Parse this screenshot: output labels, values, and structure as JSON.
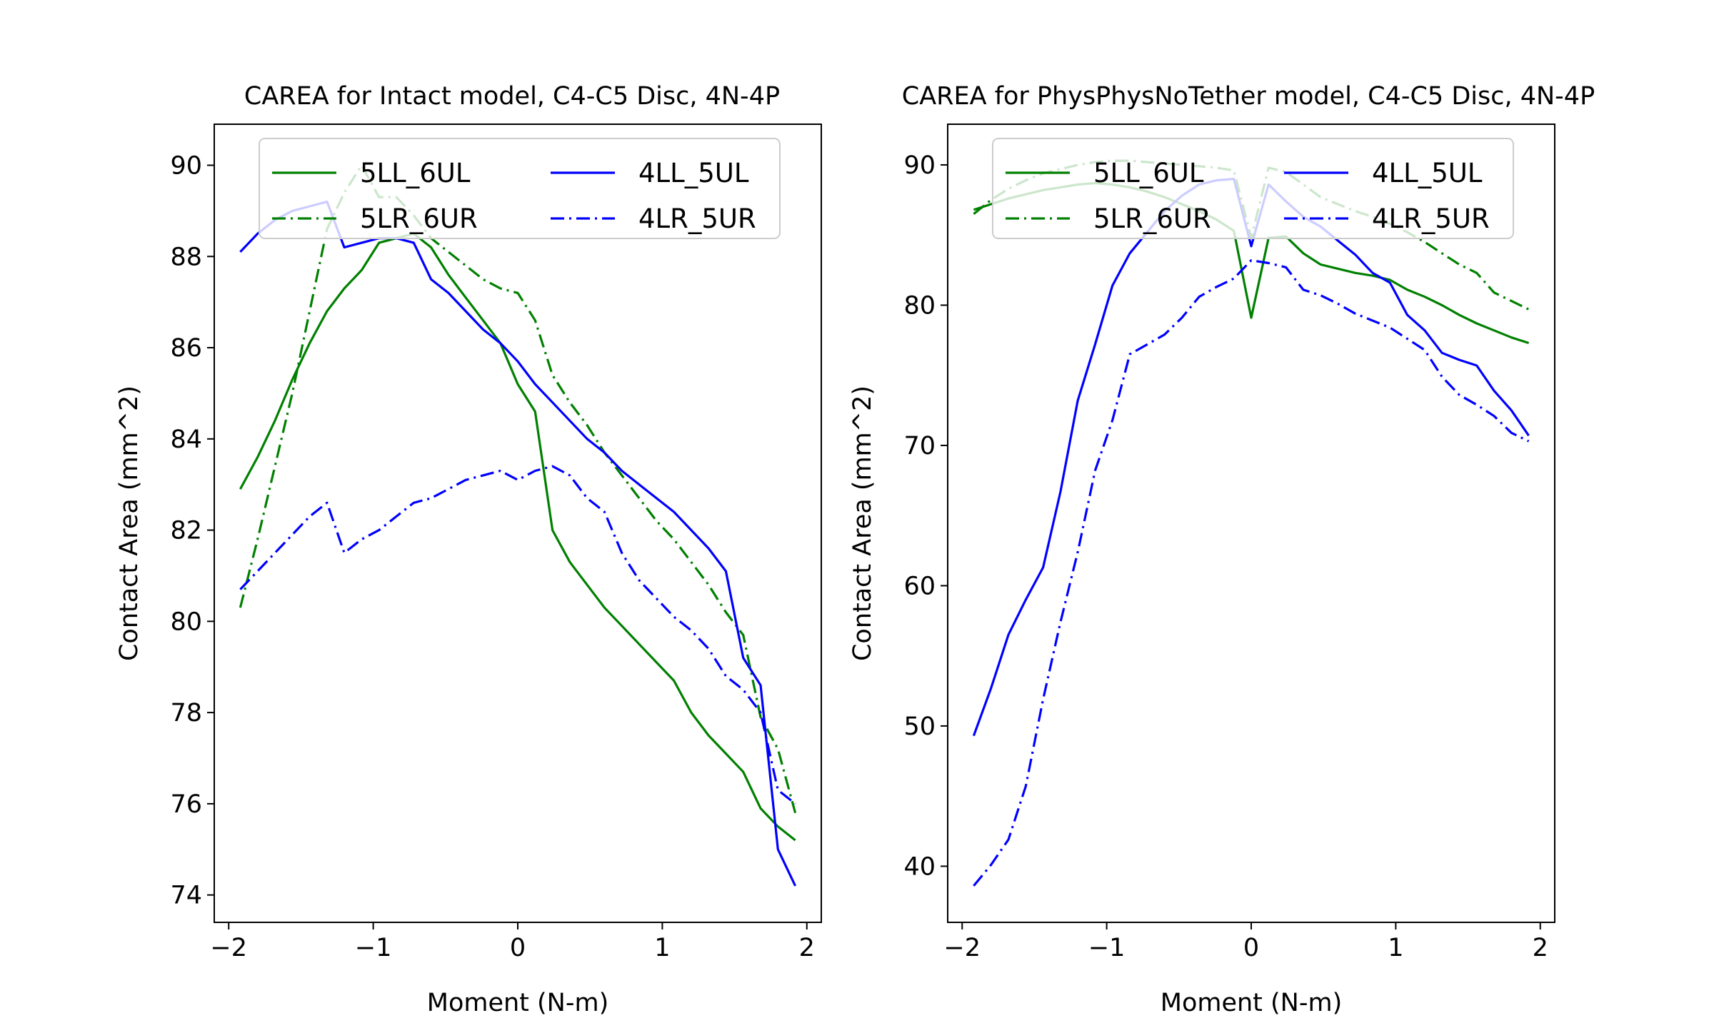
{
  "chart_data": [
    {
      "type": "line",
      "title": "CAREA for Intact model, C4-C5 Disc, 4N-4P",
      "xlabel": "Moment (N-m)",
      "ylabel": "Contact Area (mm^2)",
      "xlim": [
        -2.1,
        2.1
      ],
      "ylim": [
        73.4,
        90.9
      ],
      "xticks": [
        -2,
        -1,
        0,
        1,
        2
      ],
      "xtick_labels": [
        "−2",
        "−1",
        "0",
        "1",
        "2"
      ],
      "yticks": [
        74,
        76,
        78,
        80,
        82,
        84,
        86,
        88,
        90
      ],
      "ytick_labels": [
        "74",
        "76",
        "78",
        "80",
        "82",
        "84",
        "86",
        "88",
        "90"
      ],
      "legend_placement": "top-center",
      "series": [
        {
          "name": "5LL_6UL",
          "color": "#008000",
          "dash": "solid",
          "x": [
            -1.92,
            -1.8,
            -1.68,
            -1.56,
            -1.44,
            -1.32,
            -1.2,
            -1.08,
            -0.96,
            -0.84,
            -0.72,
            -0.6,
            -0.48,
            -0.36,
            -0.24,
            -0.12,
            0.0,
            0.12,
            0.24,
            0.36,
            0.48,
            0.6,
            0.72,
            0.84,
            0.96,
            1.08,
            1.2,
            1.32,
            1.44,
            1.56,
            1.68,
            1.8,
            1.92
          ],
          "y": [
            82.9,
            83.6,
            84.4,
            85.3,
            86.1,
            86.8,
            87.3,
            87.7,
            88.3,
            88.4,
            88.5,
            88.2,
            87.6,
            87.1,
            86.6,
            86.1,
            85.2,
            84.6,
            82.0,
            81.3,
            80.8,
            80.3,
            79.9,
            79.5,
            79.1,
            78.7,
            78.0,
            77.5,
            77.1,
            76.7,
            75.9,
            75.5,
            75.2
          ]
        },
        {
          "name": "5LR_6UR",
          "color": "#008000",
          "dash": "dashdot",
          "x": [
            -1.92,
            -1.8,
            -1.68,
            -1.56,
            -1.44,
            -1.32,
            -1.2,
            -1.08,
            -0.96,
            -0.84,
            -0.72,
            -0.6,
            -0.48,
            -0.36,
            -0.24,
            -0.12,
            0.0,
            0.12,
            0.24,
            0.36,
            0.48,
            0.6,
            0.72,
            0.84,
            0.96,
            1.08,
            1.2,
            1.32,
            1.44,
            1.56,
            1.68,
            1.8,
            1.92
          ],
          "y": [
            80.3,
            81.8,
            83.4,
            85.0,
            86.8,
            88.6,
            89.4,
            90.0,
            89.3,
            89.3,
            88.9,
            88.4,
            88.1,
            87.8,
            87.5,
            87.3,
            87.2,
            86.6,
            85.4,
            84.8,
            84.3,
            83.7,
            83.2,
            82.7,
            82.2,
            81.8,
            81.3,
            80.8,
            80.2,
            79.7,
            77.9,
            77.2,
            75.8
          ]
        },
        {
          "name": "4LL_5UL",
          "color": "#0000ff",
          "dash": "solid",
          "x": [
            -1.92,
            -1.8,
            -1.68,
            -1.56,
            -1.44,
            -1.32,
            -1.2,
            -1.08,
            -0.96,
            -0.84,
            -0.72,
            -0.6,
            -0.48,
            -0.36,
            -0.24,
            -0.12,
            0.0,
            0.12,
            0.24,
            0.36,
            0.48,
            0.6,
            0.72,
            0.84,
            0.96,
            1.08,
            1.2,
            1.32,
            1.44,
            1.56,
            1.68,
            1.8,
            1.92
          ],
          "y": [
            88.1,
            88.5,
            88.8,
            89.0,
            89.1,
            89.2,
            88.2,
            88.3,
            88.4,
            88.4,
            88.3,
            87.5,
            87.2,
            86.8,
            86.4,
            86.1,
            85.7,
            85.2,
            84.8,
            84.4,
            84.0,
            83.7,
            83.3,
            83.0,
            82.7,
            82.4,
            82.0,
            81.6,
            81.1,
            79.2,
            78.6,
            75.0,
            74.2
          ]
        },
        {
          "name": "4LR_5UR",
          "color": "#0000ff",
          "dash": "dashdot",
          "x": [
            -1.92,
            -1.8,
            -1.68,
            -1.56,
            -1.44,
            -1.32,
            -1.2,
            -1.08,
            -0.96,
            -0.84,
            -0.72,
            -0.6,
            -0.48,
            -0.36,
            -0.24,
            -0.12,
            0.0,
            0.12,
            0.24,
            0.36,
            0.48,
            0.6,
            0.72,
            0.84,
            0.96,
            1.08,
            1.2,
            1.32,
            1.44,
            1.56,
            1.68,
            1.8,
            1.92
          ],
          "y": [
            80.7,
            81.1,
            81.5,
            81.9,
            82.3,
            82.6,
            81.5,
            81.8,
            82.0,
            82.3,
            82.6,
            82.7,
            82.9,
            83.1,
            83.2,
            83.3,
            83.1,
            83.3,
            83.4,
            83.2,
            82.7,
            82.4,
            81.5,
            80.9,
            80.5,
            80.1,
            79.8,
            79.4,
            78.8,
            78.5,
            78.0,
            76.3,
            76.0
          ]
        }
      ]
    },
    {
      "type": "line",
      "title": "CAREA for PhysPhysNoTether model, C4-C5 Disc, 4N-4P",
      "xlabel": "Moment (N-m)",
      "ylabel": "Contact Area (mm^2)",
      "xlim": [
        -2.1,
        2.1
      ],
      "ylim": [
        36.0,
        92.9
      ],
      "xticks": [
        -2,
        -1,
        0,
        1,
        2
      ],
      "xtick_labels": [
        "−2",
        "−1",
        "0",
        "1",
        "2"
      ],
      "yticks": [
        40,
        50,
        60,
        70,
        80,
        90
      ],
      "ytick_labels": [
        "40",
        "50",
        "60",
        "70",
        "80",
        "90"
      ],
      "legend_placement": "top-center",
      "series": [
        {
          "name": "5LL_6UL",
          "color": "#008000",
          "dash": "solid",
          "x": [
            -1.92,
            -1.8,
            -1.68,
            -1.56,
            -1.44,
            -1.32,
            -1.2,
            -1.08,
            -0.96,
            -0.84,
            -0.72,
            -0.6,
            -0.48,
            -0.36,
            -0.24,
            -0.12,
            0.0,
            0.12,
            0.24,
            0.36,
            0.48,
            0.6,
            0.72,
            0.84,
            0.96,
            1.08,
            1.2,
            1.32,
            1.44,
            1.56,
            1.68,
            1.8,
            1.92
          ],
          "y": [
            86.8,
            87.2,
            87.6,
            87.9,
            88.2,
            88.4,
            88.6,
            88.7,
            88.6,
            88.4,
            88.1,
            87.7,
            87.2,
            86.7,
            86.1,
            85.3,
            79.1,
            84.8,
            84.9,
            83.7,
            82.9,
            82.6,
            82.3,
            82.1,
            81.8,
            81.1,
            80.6,
            80.0,
            79.3,
            78.7,
            78.2,
            77.7,
            77.3
          ]
        },
        {
          "name": "5LR_6UR",
          "color": "#008000",
          "dash": "dashdot",
          "x": [
            -1.92,
            -1.8,
            -1.68,
            -1.56,
            -1.44,
            -1.32,
            -1.2,
            -1.08,
            -0.96,
            -0.84,
            -0.72,
            -0.6,
            -0.48,
            -0.36,
            -0.24,
            -0.12,
            0.0,
            0.12,
            0.24,
            0.36,
            0.48,
            0.6,
            0.72,
            0.84,
            0.96,
            1.08,
            1.2,
            1.32,
            1.44,
            1.56,
            1.68,
            1.8,
            1.92
          ],
          "y": [
            86.5,
            87.5,
            88.3,
            88.9,
            89.4,
            89.7,
            90.0,
            90.2,
            90.3,
            90.3,
            90.2,
            90.1,
            90.0,
            89.9,
            89.8,
            89.6,
            84.8,
            89.8,
            89.5,
            88.6,
            87.7,
            87.2,
            86.7,
            86.3,
            85.8,
            85.2,
            84.5,
            83.7,
            82.9,
            82.3,
            80.9,
            80.3,
            79.7
          ]
        },
        {
          "name": "4LL_5UL",
          "color": "#0000ff",
          "dash": "solid",
          "x": [
            -1.92,
            -1.8,
            -1.68,
            -1.56,
            -1.44,
            -1.32,
            -1.2,
            -1.08,
            -0.96,
            -0.84,
            -0.72,
            -0.6,
            -0.48,
            -0.36,
            -0.24,
            -0.12,
            0.0,
            0.12,
            0.24,
            0.36,
            0.48,
            0.6,
            0.72,
            0.84,
            0.96,
            1.08,
            1.2,
            1.32,
            1.44,
            1.56,
            1.68,
            1.8,
            1.92
          ],
          "y": [
            49.3,
            52.7,
            56.5,
            59.0,
            61.3,
            66.7,
            73.2,
            77.2,
            81.4,
            83.7,
            85.2,
            86.7,
            87.8,
            88.6,
            88.9,
            89.0,
            84.2,
            88.6,
            87.4,
            86.3,
            85.6,
            84.6,
            83.6,
            82.3,
            81.6,
            79.3,
            78.2,
            76.6,
            76.1,
            75.7,
            73.9,
            72.5,
            70.7
          ]
        },
        {
          "name": "4LR_5UR",
          "color": "#0000ff",
          "dash": "dashdot",
          "x": [
            -1.92,
            -1.8,
            -1.68,
            -1.56,
            -1.44,
            -1.32,
            -1.2,
            -1.08,
            -0.96,
            -0.84,
            -0.72,
            -0.6,
            -0.48,
            -0.36,
            -0.24,
            -0.12,
            0.0,
            0.12,
            0.24,
            0.36,
            0.48,
            0.6,
            0.72,
            0.84,
            0.96,
            1.08,
            1.2,
            1.32,
            1.44,
            1.56,
            1.68,
            1.8,
            1.92
          ],
          "y": [
            38.6,
            40.1,
            41.9,
            45.7,
            51.9,
            57.4,
            62.4,
            68.2,
            71.8,
            76.5,
            77.2,
            77.9,
            79.1,
            80.6,
            81.3,
            81.9,
            83.2,
            83.0,
            82.7,
            81.1,
            80.7,
            80.1,
            79.4,
            78.9,
            78.4,
            77.6,
            76.8,
            74.9,
            73.6,
            72.9,
            72.1,
            70.9,
            70.3
          ]
        }
      ]
    }
  ]
}
